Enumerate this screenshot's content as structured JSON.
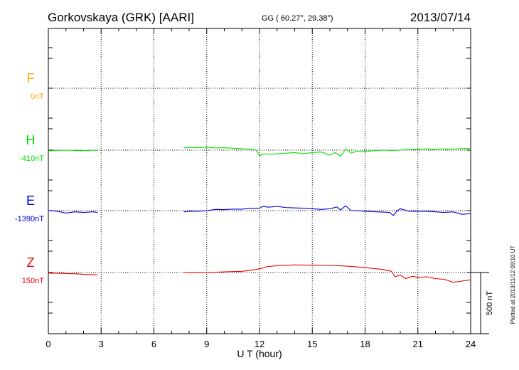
{
  "header": {
    "station": "Gorkovskaya (GRK)  [AARI]",
    "coords": "GG ( 60.27°,  29.38°)",
    "date": "2013/07/14"
  },
  "footer": {
    "plotted": "Plotted at 2013/11/12 09:10 UT"
  },
  "chart_data": {
    "type": "line",
    "xlabel": "U T (hour)",
    "xlim": [
      0,
      24
    ],
    "xticks": [
      "0",
      "3",
      "6",
      "9",
      "12",
      "15",
      "18",
      "21",
      "24"
    ],
    "scale_bar_label": "500 nT",
    "scale_bar_nT": 500,
    "grid": true,
    "gap_hours": [
      2.8,
      7.7
    ],
    "series": [
      {
        "name": "F",
        "baseline_label": "0nT",
        "color": "#ffa500",
        "baseline_nT": 0,
        "points": []
      },
      {
        "name": "H",
        "baseline_label": "-410nT",
        "color": "#00e000",
        "baseline_nT": -410,
        "points": [
          [
            0,
            -5
          ],
          [
            0.5,
            -2
          ],
          [
            1,
            0
          ],
          [
            1.5,
            -2
          ],
          [
            2,
            -5
          ],
          [
            2.5,
            0
          ],
          [
            2.8,
            -2
          ],
          [
            7.7,
            18
          ],
          [
            8,
            22
          ],
          [
            8.5,
            20
          ],
          [
            9,
            23
          ],
          [
            9.5,
            18
          ],
          [
            10,
            20
          ],
          [
            10.5,
            15
          ],
          [
            11,
            12
          ],
          [
            11.5,
            5
          ],
          [
            11.8,
            0
          ],
          [
            12,
            -45
          ],
          [
            12.3,
            -30
          ],
          [
            12.6,
            -35
          ],
          [
            13,
            -30
          ],
          [
            13.5,
            -25
          ],
          [
            14,
            -20
          ],
          [
            14.5,
            -30
          ],
          [
            15,
            -20
          ],
          [
            15.5,
            -15
          ],
          [
            16,
            -40
          ],
          [
            16.3,
            -20
          ],
          [
            16.6,
            -50
          ],
          [
            16.9,
            10
          ],
          [
            17.2,
            -25
          ],
          [
            17.5,
            -10
          ],
          [
            18,
            -10
          ],
          [
            18.5,
            -5
          ],
          [
            19,
            0
          ],
          [
            19.5,
            -3
          ],
          [
            20,
            0
          ],
          [
            20.5,
            5
          ],
          [
            21,
            5
          ],
          [
            21.5,
            10
          ],
          [
            22,
            5
          ],
          [
            22.5,
            10
          ],
          [
            23,
            8
          ],
          [
            23.5,
            12
          ],
          [
            24,
            15
          ]
        ]
      },
      {
        "name": "E",
        "baseline_label": "-1390nT",
        "color": "#0000dd",
        "baseline_nT": -1390,
        "points": [
          [
            0,
            0
          ],
          [
            0.5,
            -5
          ],
          [
            1,
            -20
          ],
          [
            1.5,
            -10
          ],
          [
            2,
            -15
          ],
          [
            2.5,
            -10
          ],
          [
            2.8,
            -15
          ],
          [
            7.7,
            -10
          ],
          [
            8,
            -5
          ],
          [
            8.5,
            -5
          ],
          [
            9,
            0
          ],
          [
            9.5,
            10
          ],
          [
            10,
            8
          ],
          [
            10.5,
            12
          ],
          [
            11,
            12
          ],
          [
            11.5,
            18
          ],
          [
            12,
            20
          ],
          [
            12.2,
            35
          ],
          [
            12.5,
            28
          ],
          [
            13,
            35
          ],
          [
            13.5,
            25
          ],
          [
            14,
            22
          ],
          [
            14.5,
            20
          ],
          [
            15,
            15
          ],
          [
            15.5,
            10
          ],
          [
            16,
            15
          ],
          [
            16.4,
            30
          ],
          [
            16.6,
            5
          ],
          [
            16.9,
            40
          ],
          [
            17.2,
            0
          ],
          [
            17.5,
            0
          ],
          [
            18,
            -5
          ],
          [
            18.5,
            -8
          ],
          [
            19,
            -12
          ],
          [
            19.4,
            -15
          ],
          [
            19.6,
            -40
          ],
          [
            19.8,
            -5
          ],
          [
            20,
            15
          ],
          [
            20.5,
            -5
          ],
          [
            21,
            -5
          ],
          [
            21.5,
            -5
          ],
          [
            22,
            -10
          ],
          [
            22.5,
            -15
          ],
          [
            23,
            -10
          ],
          [
            23.5,
            -30
          ],
          [
            24,
            -25
          ]
        ]
      },
      {
        "name": "Z",
        "baseline_label": "150nT",
        "color": "#ee0000",
        "baseline_nT": 150,
        "points": [
          [
            0,
            -5
          ],
          [
            0.5,
            -5
          ],
          [
            1,
            -8
          ],
          [
            1.5,
            -10
          ],
          [
            2,
            -15
          ],
          [
            2.5,
            -18
          ],
          [
            2.8,
            -18
          ],
          [
            7.7,
            0
          ],
          [
            8.5,
            -2
          ],
          [
            9,
            0
          ],
          [
            10,
            5
          ],
          [
            11,
            10
          ],
          [
            11.5,
            18
          ],
          [
            12,
            30
          ],
          [
            12.5,
            50
          ],
          [
            13,
            55
          ],
          [
            14,
            62
          ],
          [
            15,
            60
          ],
          [
            16,
            58
          ],
          [
            17,
            52
          ],
          [
            18,
            40
          ],
          [
            19,
            25
          ],
          [
            19.5,
            10
          ],
          [
            19.7,
            -35
          ],
          [
            20,
            -20
          ],
          [
            20.3,
            -50
          ],
          [
            20.7,
            -30
          ],
          [
            21,
            -40
          ],
          [
            21.5,
            -35
          ],
          [
            22,
            -50
          ],
          [
            22.5,
            -55
          ],
          [
            23,
            -80
          ],
          [
            23.5,
            -70
          ],
          [
            24,
            -60
          ]
        ]
      }
    ]
  }
}
